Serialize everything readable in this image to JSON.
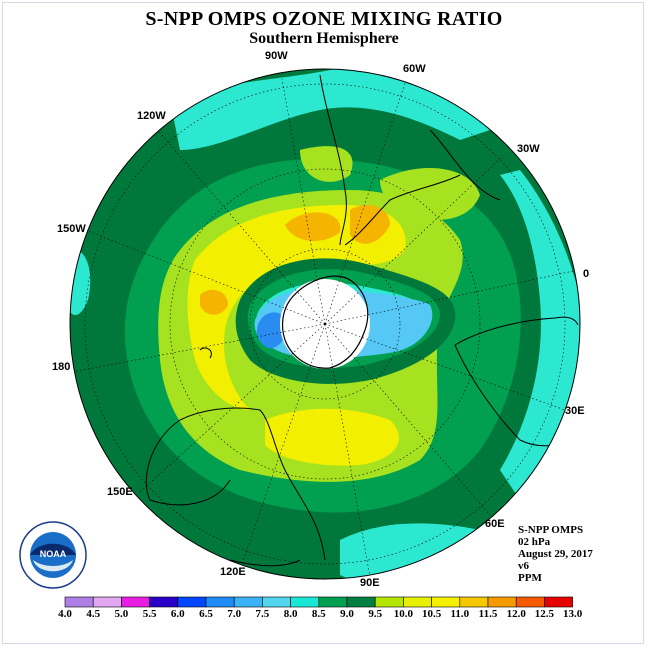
{
  "title": "S-NPP OMPS OZONE MIXING RATIO",
  "subtitle": "Southern Hemisphere",
  "longitude_labels": {
    "lon_90W": "90W",
    "lon_60W": "60W",
    "lon_120W": "120W",
    "lon_30W": "30W",
    "lon_150W": "150W",
    "lon_0": "0",
    "lon_180": "180",
    "lon_30E": "30E",
    "lon_150E": "150E",
    "lon_60E": "60E",
    "lon_120E": "120E",
    "lon_90E": "90E"
  },
  "info": {
    "product": "S-NPP OMPS",
    "level": "02 hPa",
    "date": "August 29, 2017",
    "version": "v6",
    "units": "PPM"
  },
  "logo": {
    "text": "NOAA",
    "ring_text": "NATIONAL OCEANIC AND ATMOSPHERIC ADMINISTRATION · U.S. DEPARTMENT OF COMMERCE"
  },
  "colorbar": {
    "labels": [
      "4.0",
      "4.5",
      "5.0",
      "5.5",
      "6.0",
      "6.5",
      "7.0",
      "7.5",
      "8.0",
      "8.5",
      "9.0",
      "9.5",
      "10.0",
      "10.5",
      "11.0",
      "11.5",
      "12.0",
      "12.5",
      "13.0"
    ],
    "colors": [
      "#b07fe6",
      "#e3a6f0",
      "#e81fe3",
      "#2a00c8",
      "#0046ff",
      "#1f8cf5",
      "#3bb2f5",
      "#52d6f0",
      "#1ae8d6",
      "#00a050",
      "#008040",
      "#b3e600",
      "#e6f000",
      "#f5f000",
      "#f5c800",
      "#f59a00",
      "#f55a00",
      "#e60000",
      "#8b5a3c"
    ]
  },
  "colors": {
    "sea_green_dark": "#00783c",
    "green": "#00a050",
    "turquoise": "#2de8d0",
    "lime": "#a6e21f",
    "yellow": "#f2f000",
    "orange": "#f5b400",
    "light_blue": "#55c8f5",
    "blue": "#2a8cf0",
    "polar_hole": "#ffffff"
  }
}
